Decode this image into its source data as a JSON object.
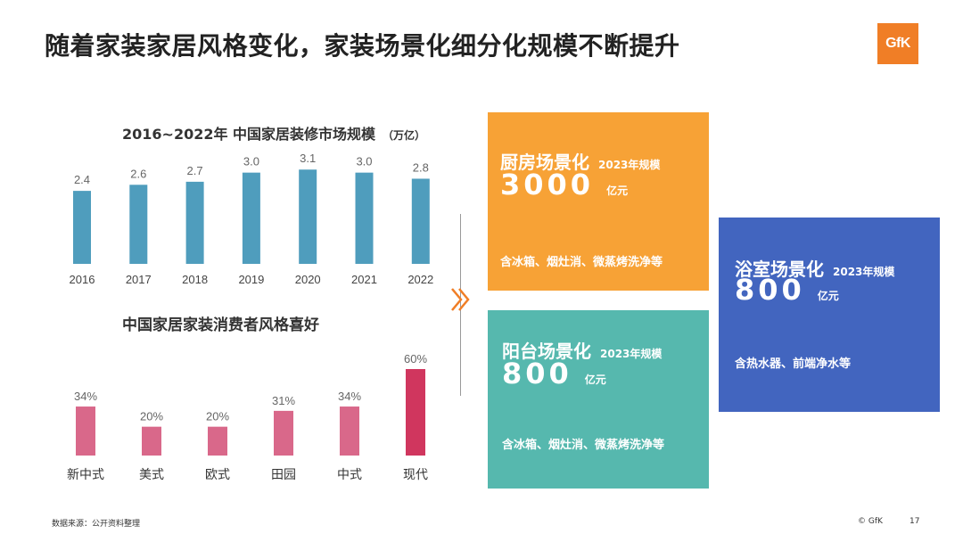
{
  "page": {
    "title": "随着家装家居风格变化，家装场景化细分化规模不断提升",
    "logo": "GfK"
  },
  "colors": {
    "bar_blue": "#4f9dbd",
    "bar_pink": "#d9688a",
    "bar_highlight": "#d0365e",
    "kitchen": "#f7a236",
    "balcony": "#56b8ae",
    "bathroom": "#4265bf",
    "logo": "#f07e26"
  },
  "chart_data": [
    {
      "type": "bar",
      "title": "2016~2022年 中国家居装修市场规模",
      "unit": "（万亿）",
      "categories": [
        "2016",
        "2017",
        "2018",
        "2019",
        "2020",
        "2021",
        "2022"
      ],
      "values": [
        2.4,
        2.6,
        2.7,
        3.0,
        3.1,
        3.0,
        2.8
      ],
      "labels": [
        "2.4",
        "2.6",
        "2.7",
        "3.0",
        "3.1",
        "3.0",
        "2.8"
      ],
      "ylim": [
        0,
        3.4
      ],
      "grid": false
    },
    {
      "type": "bar",
      "title": "中国家居家装消费者风格喜好",
      "categories": [
        "新中式",
        "美式",
        "欧式",
        "田园",
        "中式",
        "现代"
      ],
      "values": [
        34,
        20,
        20,
        31,
        34,
        60
      ],
      "labels": [
        "34%",
        "20%",
        "20%",
        "31%",
        "34%",
        "60%"
      ],
      "highlight_index": 5,
      "ylim": [
        0,
        60
      ],
      "grid": false
    }
  ],
  "cards": {
    "kitchen": {
      "name": "厨房场景化",
      "year_label": "2023年规模",
      "value": "3000",
      "unit": "亿元",
      "desc": "含冰箱、烟灶消、微蒸烤洗净等"
    },
    "balcony": {
      "name": "阳台场景化",
      "year_label": "2023年规模",
      "value": "800",
      "unit": "亿元",
      "desc": "含冰箱、烟灶消、微蒸烤洗净等"
    },
    "bathroom": {
      "name": "浴室场景化",
      "year_label": "2023年规模",
      "value": "800",
      "unit": "亿元",
      "desc": "含热水器、前端净水等"
    }
  },
  "footer": {
    "source": "数据来源：公开资料整理",
    "copyright": "© GfK",
    "page_number": "17"
  }
}
